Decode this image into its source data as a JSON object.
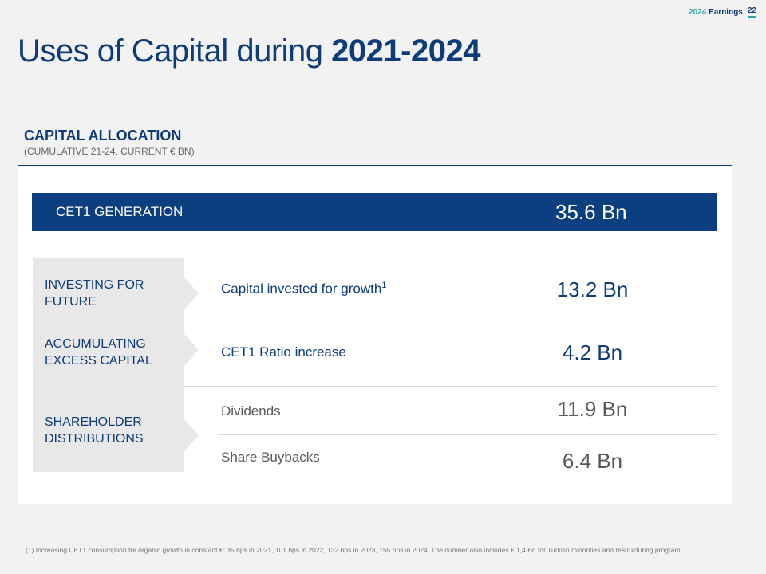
{
  "header": {
    "year": "2024",
    "section": "Earnings",
    "page_number": "22"
  },
  "title": {
    "regular": "Uses of Capital during ",
    "bold": "2021-2024"
  },
  "section": {
    "heading": "CAPITAL ALLOCATION",
    "subheading": "(CUMULATIVE 21-24. CURRENT € BN)"
  },
  "cet1": {
    "label": "CET1 GENERATION",
    "value": "35.6 Bn"
  },
  "categories": [
    {
      "label": "INVESTING FOR FUTURE"
    },
    {
      "label": "ACCUMULATING EXCESS CAPITAL"
    },
    {
      "label": "SHAREHOLDER DISTRIBUTIONS"
    }
  ],
  "rows": [
    {
      "label": "Capital invested for growth",
      "sup": "1",
      "value": "13.2 Bn"
    },
    {
      "label": "CET1 Ratio increase",
      "value": "4.2 Bn"
    },
    {
      "label": "Dividends",
      "value": "11.9 Bn"
    },
    {
      "label": "Share Buybacks",
      "value": "6.4 Bn"
    }
  ],
  "colors": {
    "brand_navy": "#0b3f7f",
    "accent_teal": "#2aa6a6",
    "category_bg": "#e8e8e8"
  },
  "footnote": "(1) Increasing CET1 consumption for organic growth in constant €: 35 bps in 2021, 101 bps in 2022, 132 bps in 2023, 155 bps in 2024. The number also includes € 1,4 Bn for Turkish minorities and restructuring program."
}
